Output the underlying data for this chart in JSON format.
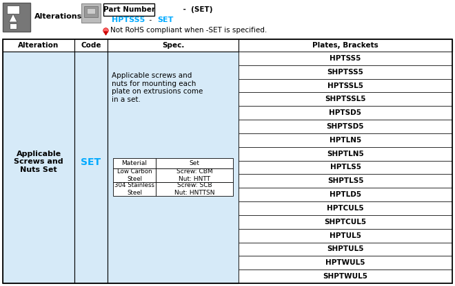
{
  "col_headers": [
    "Alteration",
    "Code",
    "Spec.",
    "Plates, Brackets"
  ],
  "alteration_text": "Applicable\nScrews and\nNuts Set",
  "code_text": "SET",
  "spec_desc": "Applicable screws and\nnuts for mounting each\nplate on extrusions come\nin a set.",
  "mat_rows": [
    [
      "Material",
      "Set"
    ],
    [
      "Low Carbon\nSteel",
      "Screw: CBM\nNut: HNTT"
    ],
    [
      "304 Stainless\nSteel",
      "Screw: SCB\nNut: HNTTSN"
    ]
  ],
  "plates": [
    "HPTSS5",
    "SHPTSS5",
    "HPTSSL5",
    "SHPTSSL5",
    "HPTSD5",
    "SHPTSD5",
    "HPTLN5",
    "SHPTLN5",
    "HPTLS5",
    "SHPTLS5",
    "HPTLD5",
    "HPTCUL5",
    "SHPTCUL5",
    "HPTUL5",
    "SHPTUL5",
    "HPTWUL5",
    "SHPTWUL5"
  ],
  "bg_blue": "#d6eaf8",
  "cyan": "#00aaff",
  "black": "#000000",
  "white": "#ffffff",
  "rohs_text": "Not RoHS compliant when -SET is specified.",
  "part_num_label": "Part Number",
  "part_num_suffix": " -  (SET)",
  "cyan_left": "HPTSS5",
  "cyan_mid": "  -  ",
  "cyan_right": "SET",
  "alterations_label": "Alterations"
}
